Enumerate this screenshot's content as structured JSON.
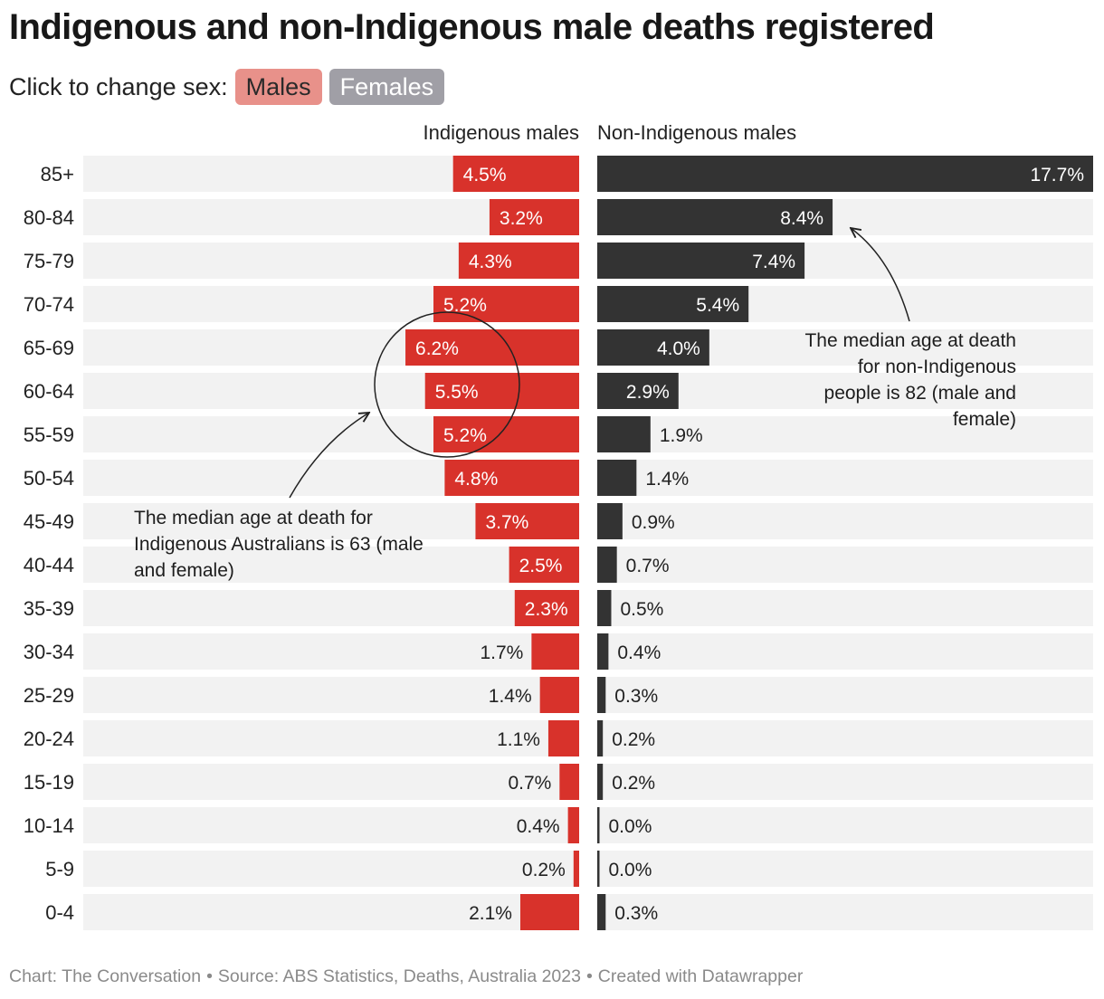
{
  "title": "Indigenous and non-Indigenous male deaths registered",
  "controls": {
    "label": "Click to change sex:",
    "options": [
      {
        "label": "Males",
        "color": "#e8918a",
        "active": true
      },
      {
        "label": "Females",
        "color": "#a09fa6",
        "active": false
      }
    ]
  },
  "chart_data": {
    "type": "bar",
    "orientation": "horizontal-diverging",
    "categories": [
      "85+",
      "80-84",
      "75-79",
      "70-74",
      "65-69",
      "60-64",
      "55-59",
      "50-54",
      "45-49",
      "40-44",
      "35-39",
      "30-34",
      "25-29",
      "20-24",
      "15-19",
      "10-14",
      "5-9",
      "0-4"
    ],
    "series": [
      {
        "name": "Indigenous males",
        "color": "#d8322b",
        "side": "left",
        "values": [
          4.5,
          3.2,
          4.3,
          5.2,
          6.2,
          5.5,
          5.2,
          4.8,
          3.7,
          2.5,
          2.3,
          1.7,
          1.4,
          1.1,
          0.7,
          0.4,
          0.2,
          2.1
        ],
        "labels": [
          "4.5%",
          "3.2%",
          "4.3%",
          "5.2%",
          "6.2%",
          "5.5%",
          "5.2%",
          "4.8%",
          "3.7%",
          "2.5%",
          "2.3%",
          "1.7%",
          "1.4%",
          "1.1%",
          "0.7%",
          "0.4%",
          "0.2%",
          "2.1%"
        ]
      },
      {
        "name": "Non-Indigenous males",
        "color": "#333333",
        "side": "right",
        "values": [
          17.7,
          8.4,
          7.4,
          5.4,
          4.0,
          2.9,
          1.9,
          1.4,
          0.9,
          0.7,
          0.5,
          0.4,
          0.3,
          0.2,
          0.2,
          0.0,
          0.0,
          0.3
        ],
        "labels": [
          "17.7%",
          "8.4%",
          "7.4%",
          "5.4%",
          "4.0%",
          "2.9%",
          "1.9%",
          "1.4%",
          "0.9%",
          "0.7%",
          "0.5%",
          "0.4%",
          "0.3%",
          "0.2%",
          "0.2%",
          "0.0%",
          "0.0%",
          "0.3%"
        ]
      }
    ],
    "xlim": [
      0,
      17.7
    ],
    "background_track_color": "#f2f2f2",
    "annotations": [
      {
        "text": "The median age at death for Indigenous Australians is 63 (male and female)",
        "target_category": "60-64",
        "side": "left"
      },
      {
        "text": "The median age at death for non-Indigenous people is 82 (male and female)",
        "target_category": "80-84",
        "side": "right"
      }
    ]
  },
  "footer": {
    "chart_credit": "Chart: The Conversation",
    "source": "Source: ABS Statistics, Deaths, Australia 2023",
    "tool": "Created with Datawrapper"
  }
}
